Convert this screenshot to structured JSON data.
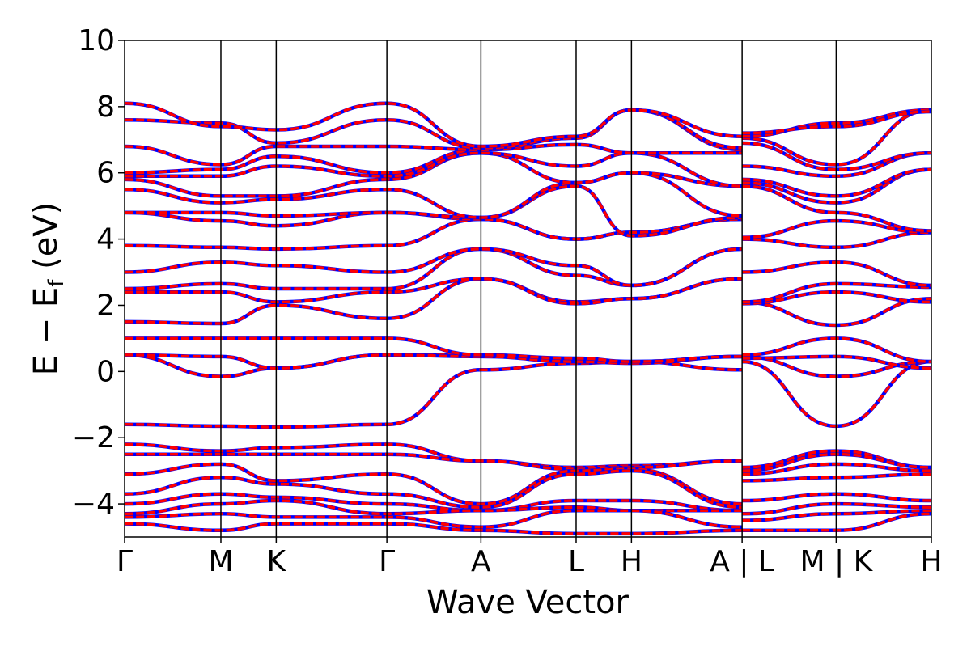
{
  "chart_data": {
    "type": "line",
    "xlabel": "Wave Vector",
    "ylabel": "E − E",
    "ylabel_sub": "f",
    "ylabel_unit": " (eV)",
    "ylim": [
      -5,
      10
    ],
    "yticks": [
      10,
      8,
      6,
      4,
      2,
      0,
      -2,
      -4
    ],
    "ytick_labels": [
      "10",
      "8",
      "6",
      "4",
      "2",
      "0",
      "−2",
      "−4"
    ],
    "grid": false,
    "legend": "none",
    "line_colors": {
      "overlay": "#ff0000",
      "underlay": "#0000ff"
    },
    "kpath": {
      "labels": [
        "Γ",
        "M",
        "K",
        "Γ",
        "A",
        "L",
        "H",
        "A | L",
        "M | K",
        "H"
      ],
      "positions": [
        0,
        0.87,
        1.37,
        2.37,
        3.22,
        4.08,
        4.58,
        5.58,
        6.43,
        7.29
      ],
      "xlim": [
        0,
        7.29
      ]
    },
    "bands": [
      {
        "points": [
          [
            0,
            -1.6
          ],
          [
            0.87,
            -1.65
          ],
          [
            1.37,
            -1.68
          ],
          [
            2.37,
            -1.6
          ],
          [
            3.22,
            0.05
          ],
          [
            4.08,
            0.25
          ],
          [
            4.58,
            0.3
          ],
          [
            5.58,
            0.05
          ],
          [
            5.58,
            0.3
          ],
          [
            6.43,
            -1.65
          ],
          [
            7.29,
            0.3
          ]
        ]
      },
      {
        "points": [
          [
            0,
            0.5
          ],
          [
            0.87,
            -0.15
          ],
          [
            1.37,
            0.1
          ],
          [
            2.37,
            0.5
          ],
          [
            3.22,
            0.5
          ],
          [
            4.08,
            0.35
          ],
          [
            4.58,
            0.3
          ],
          [
            5.58,
            0.45
          ],
          [
            5.58,
            0.45
          ],
          [
            6.43,
            -0.15
          ],
          [
            7.29,
            0.3
          ]
        ]
      },
      {
        "points": [
          [
            0,
            0.5
          ],
          [
            0.87,
            0.45
          ],
          [
            1.37,
            0.1
          ],
          [
            2.37,
            0.5
          ],
          [
            3.22,
            0.45
          ],
          [
            4.08,
            0.3
          ],
          [
            4.58,
            0.25
          ],
          [
            5.58,
            0.45
          ],
          [
            5.58,
            0.4
          ],
          [
            6.43,
            0.45
          ],
          [
            7.29,
            0.1
          ]
        ]
      },
      {
        "points": [
          [
            0,
            1.0
          ],
          [
            0.87,
            1.0
          ],
          [
            1.37,
            1.0
          ],
          [
            2.37,
            1.0
          ],
          [
            3.22,
            0.5
          ],
          [
            4.08,
            0.4
          ],
          [
            4.58,
            0.3
          ],
          [
            5.58,
            0.45
          ],
          [
            5.58,
            0.5
          ],
          [
            6.43,
            1.0
          ],
          [
            7.29,
            0.3
          ]
        ]
      },
      {
        "points": [
          [
            0,
            1.5
          ],
          [
            0.87,
            1.45
          ],
          [
            1.37,
            2.0
          ],
          [
            2.37,
            1.6
          ],
          [
            3.22,
            2.8
          ],
          [
            4.08,
            2.1
          ],
          [
            4.58,
            2.2
          ],
          [
            5.58,
            2.8
          ],
          [
            5.58,
            2.1
          ],
          [
            6.43,
            1.4
          ],
          [
            7.29,
            2.2
          ]
        ]
      },
      {
        "points": [
          [
            0,
            2.4
          ],
          [
            0.87,
            2.4
          ],
          [
            1.37,
            2.1
          ],
          [
            2.37,
            2.4
          ],
          [
            3.22,
            2.8
          ],
          [
            4.08,
            2.05
          ],
          [
            4.58,
            2.2
          ],
          [
            5.58,
            2.8
          ],
          [
            5.58,
            2.05
          ],
          [
            6.43,
            2.4
          ],
          [
            7.29,
            2.1
          ]
        ]
      },
      {
        "points": [
          [
            0,
            2.5
          ],
          [
            0.87,
            2.65
          ],
          [
            1.37,
            2.5
          ],
          [
            2.37,
            2.5
          ],
          [
            3.22,
            3.7
          ],
          [
            4.08,
            2.9
          ],
          [
            4.58,
            2.6
          ],
          [
            5.58,
            3.7
          ],
          [
            5.58,
            2.1
          ],
          [
            6.43,
            2.65
          ],
          [
            7.29,
            2.55
          ]
        ]
      },
      {
        "points": [
          [
            0,
            3.0
          ],
          [
            0.87,
            3.3
          ],
          [
            1.37,
            3.2
          ],
          [
            2.37,
            3.0
          ],
          [
            3.22,
            3.7
          ],
          [
            4.08,
            3.2
          ],
          [
            4.58,
            2.6
          ],
          [
            5.58,
            3.7
          ],
          [
            5.58,
            3.0
          ],
          [
            6.43,
            3.3
          ],
          [
            7.29,
            2.6
          ]
        ]
      },
      {
        "points": [
          [
            0,
            3.8
          ],
          [
            0.87,
            3.75
          ],
          [
            1.37,
            3.7
          ],
          [
            2.37,
            3.8
          ],
          [
            3.22,
            4.6
          ],
          [
            4.08,
            4.0
          ],
          [
            4.58,
            4.2
          ],
          [
            5.58,
            4.6
          ],
          [
            5.58,
            4.0
          ],
          [
            6.43,
            3.75
          ],
          [
            7.29,
            4.2
          ]
        ]
      },
      {
        "points": [
          [
            0,
            4.8
          ],
          [
            0.87,
            4.55
          ],
          [
            1.37,
            4.4
          ],
          [
            2.37,
            4.8
          ],
          [
            3.22,
            4.6
          ],
          [
            4.08,
            4.0
          ],
          [
            4.58,
            4.2
          ],
          [
            5.58,
            4.6
          ],
          [
            5.58,
            4.05
          ],
          [
            6.43,
            4.55
          ],
          [
            7.29,
            4.2
          ]
        ]
      },
      {
        "points": [
          [
            0,
            4.8
          ],
          [
            0.87,
            4.8
          ],
          [
            1.37,
            4.7
          ],
          [
            2.37,
            4.8
          ],
          [
            3.22,
            4.65
          ],
          [
            4.08,
            5.6
          ],
          [
            4.58,
            4.1
          ],
          [
            5.58,
            4.65
          ],
          [
            5.58,
            5.6
          ],
          [
            6.43,
            4.8
          ],
          [
            7.29,
            4.25
          ]
        ]
      },
      {
        "points": [
          [
            0,
            5.5
          ],
          [
            0.87,
            5.1
          ],
          [
            1.37,
            5.2
          ],
          [
            2.37,
            5.5
          ],
          [
            3.22,
            4.65
          ],
          [
            4.08,
            5.7
          ],
          [
            4.58,
            6.0
          ],
          [
            5.58,
            4.7
          ],
          [
            5.58,
            5.7
          ],
          [
            6.43,
            5.1
          ],
          [
            7.29,
            6.1
          ]
        ]
      },
      {
        "points": [
          [
            0,
            5.8
          ],
          [
            0.87,
            5.3
          ],
          [
            1.37,
            5.3
          ],
          [
            2.37,
            5.8
          ],
          [
            3.22,
            6.6
          ],
          [
            4.08,
            5.7
          ],
          [
            4.58,
            6.0
          ],
          [
            5.58,
            5.6
          ],
          [
            5.58,
            5.8
          ],
          [
            6.43,
            5.3
          ],
          [
            7.29,
            6.1
          ]
        ]
      },
      {
        "points": [
          [
            0,
            5.9
          ],
          [
            0.87,
            5.9
          ],
          [
            1.37,
            6.2
          ],
          [
            2.37,
            5.9
          ],
          [
            3.22,
            6.6
          ],
          [
            4.08,
            6.2
          ],
          [
            4.58,
            6.6
          ],
          [
            5.58,
            5.6
          ],
          [
            5.58,
            6.2
          ],
          [
            6.43,
            5.9
          ],
          [
            7.29,
            6.6
          ]
        ]
      },
      {
        "points": [
          [
            0,
            6.0
          ],
          [
            0.87,
            6.1
          ],
          [
            1.37,
            6.5
          ],
          [
            2.37,
            6.0
          ],
          [
            3.22,
            6.7
          ],
          [
            4.08,
            6.85
          ],
          [
            4.58,
            6.6
          ],
          [
            5.58,
            6.6
          ],
          [
            5.58,
            6.9
          ],
          [
            6.43,
            6.1
          ],
          [
            7.29,
            6.6
          ]
        ]
      },
      {
        "points": [
          [
            0,
            6.8
          ],
          [
            0.87,
            6.25
          ],
          [
            1.37,
            6.8
          ],
          [
            2.37,
            6.8
          ],
          [
            3.22,
            6.7
          ],
          [
            4.08,
            7.05
          ],
          [
            4.58,
            7.9
          ],
          [
            5.58,
            6.7
          ],
          [
            5.58,
            7.05
          ],
          [
            6.43,
            6.25
          ],
          [
            7.29,
            7.9
          ]
        ]
      },
      {
        "points": [
          [
            0,
            7.6
          ],
          [
            0.87,
            7.5
          ],
          [
            1.37,
            6.9
          ],
          [
            2.37,
            7.6
          ],
          [
            3.22,
            6.75
          ],
          [
            4.08,
            7.05
          ],
          [
            4.58,
            7.9
          ],
          [
            5.58,
            6.75
          ],
          [
            5.58,
            7.1
          ],
          [
            6.43,
            7.5
          ],
          [
            7.29,
            7.9
          ]
        ]
      },
      {
        "points": [
          [
            0,
            8.1
          ],
          [
            0.87,
            7.4
          ],
          [
            1.37,
            7.3
          ],
          [
            2.37,
            8.1
          ],
          [
            3.22,
            6.8
          ],
          [
            4.08,
            7.1
          ],
          [
            4.58,
            7.9
          ],
          [
            5.58,
            7.1
          ],
          [
            5.58,
            7.2
          ],
          [
            6.43,
            7.4
          ],
          [
            7.29,
            7.85
          ]
        ]
      },
      {
        "points": [
          [
            0,
            -2.2
          ],
          [
            0.87,
            -2.4
          ],
          [
            1.37,
            -2.3
          ],
          [
            2.37,
            -2.2
          ],
          [
            3.22,
            -2.7
          ],
          [
            4.08,
            -2.9
          ],
          [
            4.58,
            -2.85
          ],
          [
            5.58,
            -2.7
          ],
          [
            5.58,
            -2.9
          ],
          [
            6.43,
            -2.4
          ],
          [
            7.29,
            -2.9
          ]
        ]
      },
      {
        "points": [
          [
            0,
            -2.5
          ],
          [
            0.87,
            -2.5
          ],
          [
            1.37,
            -2.5
          ],
          [
            2.37,
            -2.5
          ],
          [
            3.22,
            -2.7
          ],
          [
            4.08,
            -2.95
          ],
          [
            4.58,
            -2.9
          ],
          [
            5.58,
            -2.7
          ],
          [
            5.58,
            -3.0
          ],
          [
            6.43,
            -2.5
          ],
          [
            7.29,
            -2.9
          ]
        ]
      },
      {
        "points": [
          [
            0,
            -3.1
          ],
          [
            0.87,
            -2.8
          ],
          [
            1.37,
            -3.3
          ],
          [
            2.37,
            -3.1
          ],
          [
            3.22,
            -4.0
          ],
          [
            4.08,
            -3.0
          ],
          [
            4.58,
            -2.95
          ],
          [
            5.58,
            -4.0
          ],
          [
            5.58,
            -3.1
          ],
          [
            6.43,
            -2.8
          ],
          [
            7.29,
            -3.0
          ]
        ]
      },
      {
        "points": [
          [
            0,
            -3.7
          ],
          [
            0.87,
            -3.2
          ],
          [
            1.37,
            -3.4
          ],
          [
            2.37,
            -3.7
          ],
          [
            3.22,
            -4.1
          ],
          [
            4.08,
            -3.1
          ],
          [
            4.58,
            -3.0
          ],
          [
            5.58,
            -4.1
          ],
          [
            5.58,
            -3.3
          ],
          [
            6.43,
            -3.2
          ],
          [
            7.29,
            -3.1
          ]
        ]
      },
      {
        "points": [
          [
            0,
            -4.0
          ],
          [
            0.87,
            -3.7
          ],
          [
            1.37,
            -3.8
          ],
          [
            2.37,
            -4.0
          ],
          [
            3.22,
            -4.2
          ],
          [
            4.08,
            -3.9
          ],
          [
            4.58,
            -3.9
          ],
          [
            5.58,
            -4.2
          ],
          [
            5.58,
            -3.9
          ],
          [
            6.43,
            -3.7
          ],
          [
            7.29,
            -3.9
          ]
        ]
      },
      {
        "points": [
          [
            0,
            -4.3
          ],
          [
            0.87,
            -4.0
          ],
          [
            1.37,
            -3.9
          ],
          [
            2.37,
            -4.3
          ],
          [
            3.22,
            -4.2
          ],
          [
            4.08,
            -4.1
          ],
          [
            4.58,
            -4.2
          ],
          [
            5.58,
            -4.2
          ],
          [
            5.58,
            -4.3
          ],
          [
            6.43,
            -4.0
          ],
          [
            7.29,
            -4.1
          ]
        ]
      },
      {
        "points": [
          [
            0,
            -4.4
          ],
          [
            0.87,
            -4.3
          ],
          [
            1.37,
            -4.4
          ],
          [
            2.37,
            -4.4
          ],
          [
            3.22,
            -4.7
          ],
          [
            4.08,
            -4.2
          ],
          [
            4.58,
            -4.2
          ],
          [
            5.58,
            -4.7
          ],
          [
            5.58,
            -4.5
          ],
          [
            6.43,
            -4.3
          ],
          [
            7.29,
            -4.2
          ]
        ]
      },
      {
        "points": [
          [
            0,
            -4.6
          ],
          [
            0.87,
            -4.8
          ],
          [
            1.37,
            -4.6
          ],
          [
            2.37,
            -4.6
          ],
          [
            3.22,
            -4.8
          ],
          [
            4.08,
            -4.9
          ],
          [
            4.58,
            -4.9
          ],
          [
            5.58,
            -4.8
          ],
          [
            5.58,
            -4.8
          ],
          [
            6.43,
            -4.8
          ],
          [
            7.29,
            -4.3
          ]
        ]
      }
    ]
  }
}
